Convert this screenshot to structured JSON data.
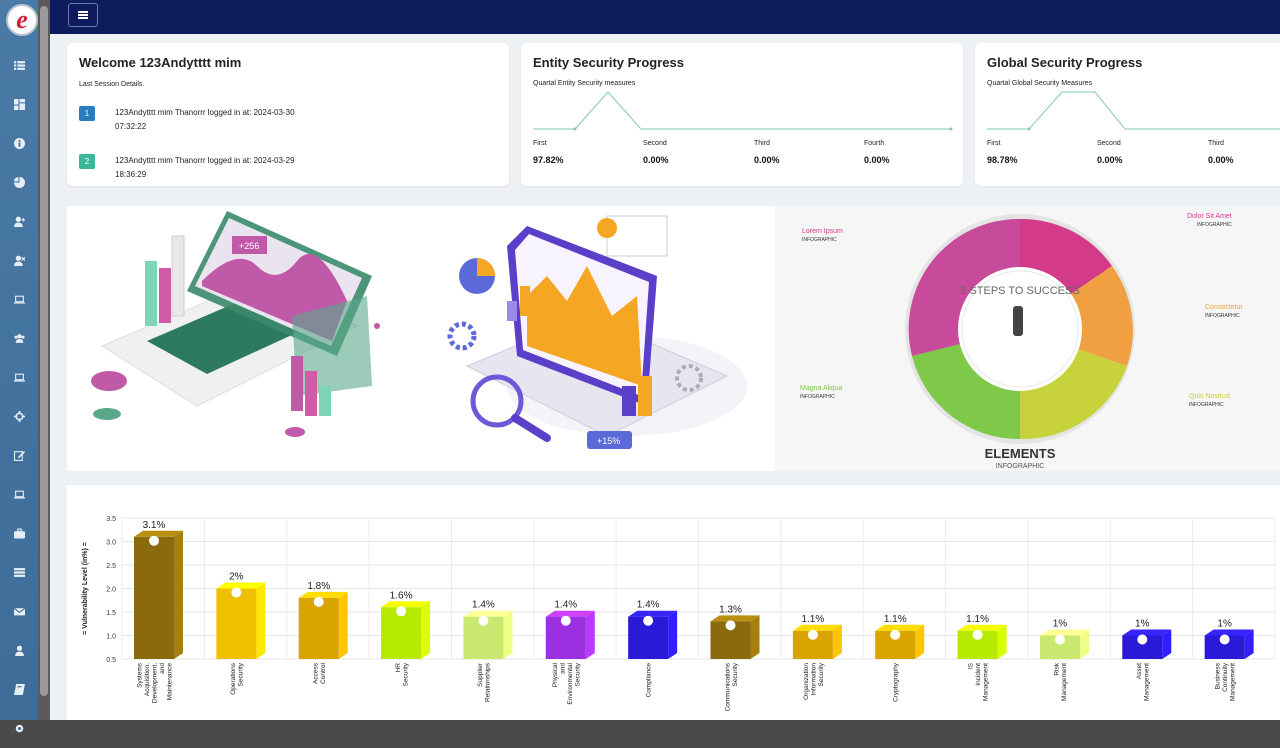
{
  "app": {
    "logo_letter": "e"
  },
  "welcome": {
    "title": "Welcome 123Andytttt mim",
    "subtitle": "Last Session Details.",
    "sessions": [
      {
        "index": "1",
        "line1": "123Andytttt mim Thanorrr logged in at: 2024-03-30",
        "line2": "07:32:22",
        "color": "#2a7bbf"
      },
      {
        "index": "2",
        "line1": "123Andytttt mim Thanorrr logged in at: 2024-03-29",
        "line2": "18:36:29",
        "color": "#3bb79a"
      }
    ]
  },
  "entity": {
    "title": "Entity Security Progress",
    "subtitle": "Quartal Entity Security measures",
    "quarters": [
      {
        "label": "First",
        "value": "97.82%"
      },
      {
        "label": "Second",
        "value": "0.00%"
      },
      {
        "label": "Third",
        "value": "0.00%"
      },
      {
        "label": "Fourth",
        "value": "0.00%"
      }
    ]
  },
  "global": {
    "title": "Global Security Progress",
    "subtitle": "Quartal Global Security Measures",
    "quarters": [
      {
        "label": "First",
        "value": "98.78%"
      },
      {
        "label": "Second",
        "value": "0.00%"
      },
      {
        "label": "Third",
        "value": "0.00%"
      }
    ]
  },
  "banner": {
    "steps_text": "5 STEPS TO SUCCESS",
    "elements_title": "ELEMENTS",
    "elements_sub": "INFOGRAPHIC",
    "infographic_labels": [
      {
        "title": "Lorem Ipsum",
        "sub": "INFOGRAPHIC"
      },
      {
        "title": "Dolor Sit Amet",
        "sub": "INFOGRAPHIC"
      },
      {
        "title": "Consectetur",
        "sub": "INFOGRAPHIC"
      },
      {
        "title": "Magna Aliqua",
        "sub": "INFOGRAPHIC"
      },
      {
        "title": "Quis Nostrud",
        "sub": "INFOGRAPHIC"
      }
    ],
    "badge1": "+256",
    "badge2": "+15%"
  },
  "chart_data": {
    "type": "bar",
    "ylabel": "= Vulnerability Level (in%) =",
    "ylim": [
      0.5,
      3.5
    ],
    "yticks": [
      "3.5",
      "3.0",
      "2.5",
      "2.0",
      "1.5",
      "1.0",
      "0.5"
    ],
    "grid": true,
    "categories": [
      "Systems Acquisition, Development, and Maintenance",
      "Operations Security",
      "Access Control",
      "HR Security",
      "Supplier Relationships",
      "Physical and Environmental Security",
      "Compliance",
      "Communications Security",
      "Organization Information Security",
      "Cryptography",
      "IS Incident Management",
      "Risk Management",
      "Asset Management",
      "Business Continuity Management"
    ],
    "category_lines": [
      [
        "Systems",
        "Acquisition,",
        "Development,",
        "and",
        "Maintenance"
      ],
      [
        "Operations",
        "Security"
      ],
      [
        "Access",
        "Control"
      ],
      [
        "HR",
        "Security"
      ],
      [
        "Supplier",
        "Relationships"
      ],
      [
        "Physical",
        "and",
        "Environmental",
        "Security"
      ],
      [
        "Compliance"
      ],
      [
        "Communications",
        "Security"
      ],
      [
        "Organization",
        "Information",
        "Security"
      ],
      [
        "Cryptography"
      ],
      [
        "IS",
        "Incident",
        "Management"
      ],
      [
        "Risk",
        "Management"
      ],
      [
        "Asset",
        "Management"
      ],
      [
        "Business",
        "Continuity",
        "Management"
      ]
    ],
    "values": [
      3.1,
      2,
      1.8,
      1.6,
      1.4,
      1.4,
      1.4,
      1.3,
      1.1,
      1.1,
      1.1,
      1,
      1,
      1
    ],
    "value_labels": [
      "3.1%",
      "2%",
      "1.8%",
      "1.6%",
      "1.4%",
      "1.4%",
      "1.4%",
      "1.3%",
      "1.1%",
      "1.1%",
      "1.1%",
      "1%",
      "1%",
      "1%"
    ],
    "colors": [
      "#8a6a0c",
      "#f0c000",
      "#d9a400",
      "#b6ea00",
      "#c8e870",
      "#9a30e0",
      "#2a1ad8",
      "#8a6a0c",
      "#d9a400",
      "#d9a400",
      "#b6ea00",
      "#c8e870",
      "#2a1ad8",
      "#2a1ad8"
    ]
  }
}
